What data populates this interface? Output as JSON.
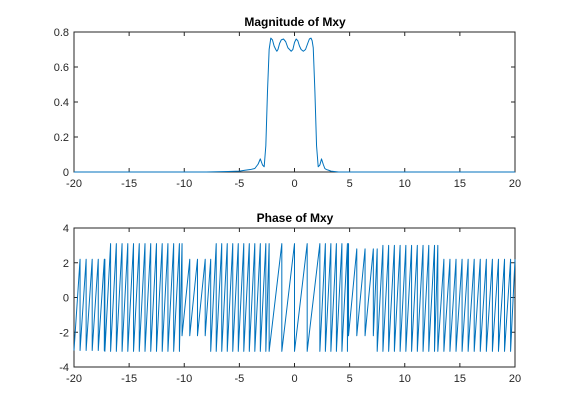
{
  "chart_data": [
    {
      "type": "line",
      "title": "Magnitude of Mxy",
      "xlabel": "",
      "ylabel": "",
      "xlim": [
        -20,
        20
      ],
      "ylim": [
        0,
        0.8
      ],
      "xticks": [
        -20,
        -15,
        -10,
        -5,
        0,
        5,
        10,
        15,
        20
      ],
      "yticks": [
        0,
        0.2,
        0.4,
        0.6,
        0.8
      ],
      "xtick_labels": [
        "-20",
        "-15",
        "-10",
        "-5",
        "0",
        "5",
        "10",
        "15",
        "20"
      ],
      "ytick_labels": [
        "0",
        "0.2",
        "0.4",
        "0.6",
        "0.8"
      ],
      "grid": false,
      "color": "#0072bd",
      "series": [
        {
          "x": [
            -20,
            -8,
            -6,
            -5,
            -4.5,
            -4,
            -3.6,
            -3.3,
            -3.1,
            -2.9,
            -2.75,
            -2.6,
            -2.45,
            -2.3,
            -2.15,
            -2.0,
            -1.85,
            -1.7,
            -1.6,
            -1.5,
            -1.35,
            -1.2,
            -1.0,
            -0.8,
            -0.6,
            -0.45,
            -0.3,
            -0.15,
            0,
            0.15,
            0.3,
            0.45,
            0.6,
            0.8,
            1.0,
            1.2,
            1.35,
            1.5,
            1.6,
            1.7,
            1.85,
            2.0,
            2.15,
            2.3,
            2.45,
            2.6,
            2.75,
            2.9,
            3.1,
            3.3,
            3.6,
            4,
            4.5,
            5,
            6,
            8,
            20
          ],
          "y": [
            0,
            0,
            0.003,
            0.005,
            0.01,
            0.014,
            0.02,
            0.045,
            0.075,
            0.04,
            0.03,
            0.15,
            0.46,
            0.7,
            0.765,
            0.755,
            0.72,
            0.7,
            0.69,
            0.7,
            0.735,
            0.755,
            0.76,
            0.745,
            0.71,
            0.7,
            0.69,
            0.7,
            0.74,
            0.76,
            0.75,
            0.72,
            0.7,
            0.69,
            0.7,
            0.735,
            0.76,
            0.765,
            0.75,
            0.71,
            0.46,
            0.15,
            0.03,
            0.04,
            0.075,
            0.045,
            0.02,
            0.014,
            0.01,
            0.005,
            0.003,
            0,
            0,
            0,
            0,
            0,
            0
          ]
        }
      ]
    },
    {
      "type": "line",
      "title": "Phase of Mxy",
      "xlabel": "",
      "ylabel": "",
      "xlim": [
        -20,
        20
      ],
      "ylim": [
        -4,
        4
      ],
      "xticks": [
        -20,
        -15,
        -10,
        -5,
        0,
        5,
        10,
        15,
        20
      ],
      "yticks": [
        -4,
        -2,
        0,
        2,
        4
      ],
      "xtick_labels": [
        "-20",
        "-15",
        "-10",
        "-5",
        "0",
        "5",
        "10",
        "15",
        "20"
      ],
      "ytick_labels": [
        "-4",
        "-2",
        "0",
        "2",
        "4"
      ],
      "grid": false,
      "color": "#0072bd",
      "segments": [
        {
          "from": -20.0,
          "to": -17.2,
          "period": 0.55,
          "amp_top": 2.2,
          "amp_bottom": -3.05
        },
        {
          "from": -17.2,
          "to": -10.2,
          "period": 0.52,
          "amp_top": 3.1,
          "amp_bottom": -3.1
        },
        {
          "from": -10.2,
          "to": -7.6,
          "period": 0.7,
          "amp_top": 2.2,
          "amp_bottom": -2.2
        },
        {
          "from": -7.6,
          "to": -2.3,
          "period": 0.5,
          "amp_top": 3.1,
          "amp_bottom": -3.1
        },
        {
          "from": -2.3,
          "to": 2.3,
          "period": 1.15,
          "amp_top": 3.1,
          "amp_bottom": -3.1
        },
        {
          "from": 2.3,
          "to": 4.9,
          "period": 0.5,
          "amp_top": 3.1,
          "amp_bottom": -3.1
        },
        {
          "from": 4.9,
          "to": 7.5,
          "period": 0.75,
          "amp_top": 2.8,
          "amp_bottom": -2.2
        },
        {
          "from": 7.5,
          "to": 13.0,
          "period": 0.52,
          "amp_top": 3.0,
          "amp_bottom": -3.1
        },
        {
          "from": 13.0,
          "to": 20.0,
          "period": 0.55,
          "amp_top": 2.2,
          "amp_bottom": -3.1
        }
      ]
    }
  ]
}
